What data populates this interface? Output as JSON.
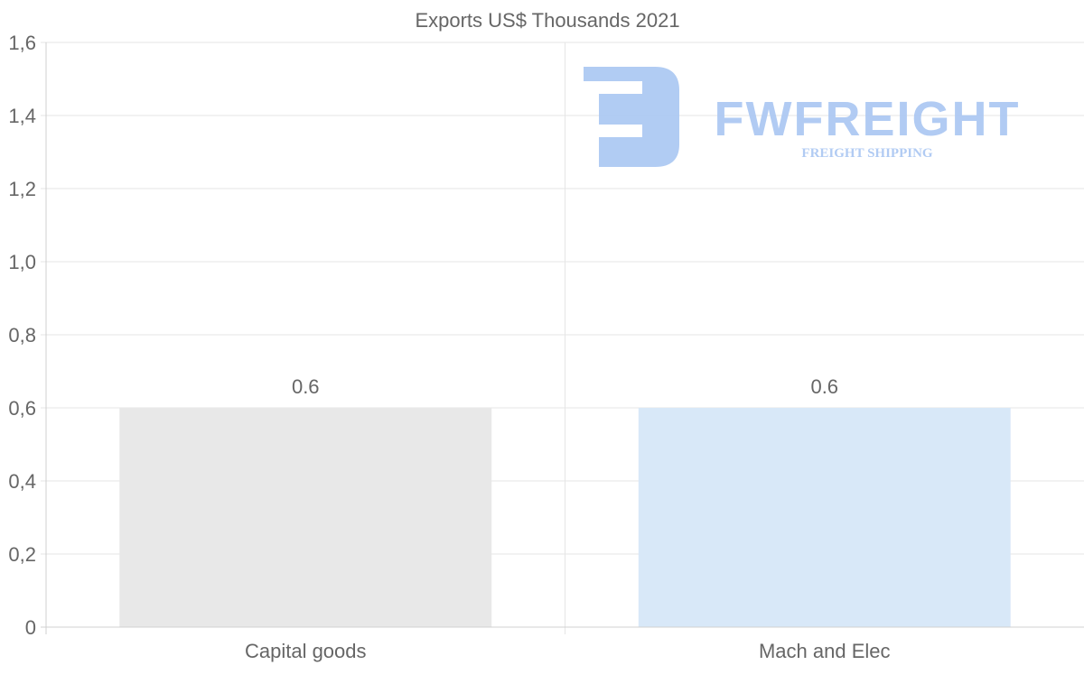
{
  "chart_data": {
    "type": "bar",
    "title": "Exports US$ Thousands 2021",
    "categories": [
      "Capital goods",
      "Mach and Elec"
    ],
    "values": [
      0.6,
      0.6
    ],
    "data_labels": [
      "0.6",
      "0.6"
    ],
    "bar_colors": [
      "#e8e8e8",
      "#d8e8f8"
    ],
    "xlabel": "",
    "ylabel": "",
    "ylim": [
      0,
      1.6
    ],
    "yticks": [
      0,
      0.2,
      0.4,
      0.6,
      0.8,
      1.0,
      1.2,
      1.4,
      1.6
    ],
    "ytick_labels": [
      "0",
      "0,2",
      "0,4",
      "0,6",
      "0,8",
      "1,0",
      "1,2",
      "1,4",
      "1,6"
    ],
    "grid": true,
    "legend": "none"
  },
  "watermark": {
    "brand": "FWFREIGHT",
    "tagline": "FREIGHT SHIPPING",
    "color": "#a9c6f2"
  }
}
